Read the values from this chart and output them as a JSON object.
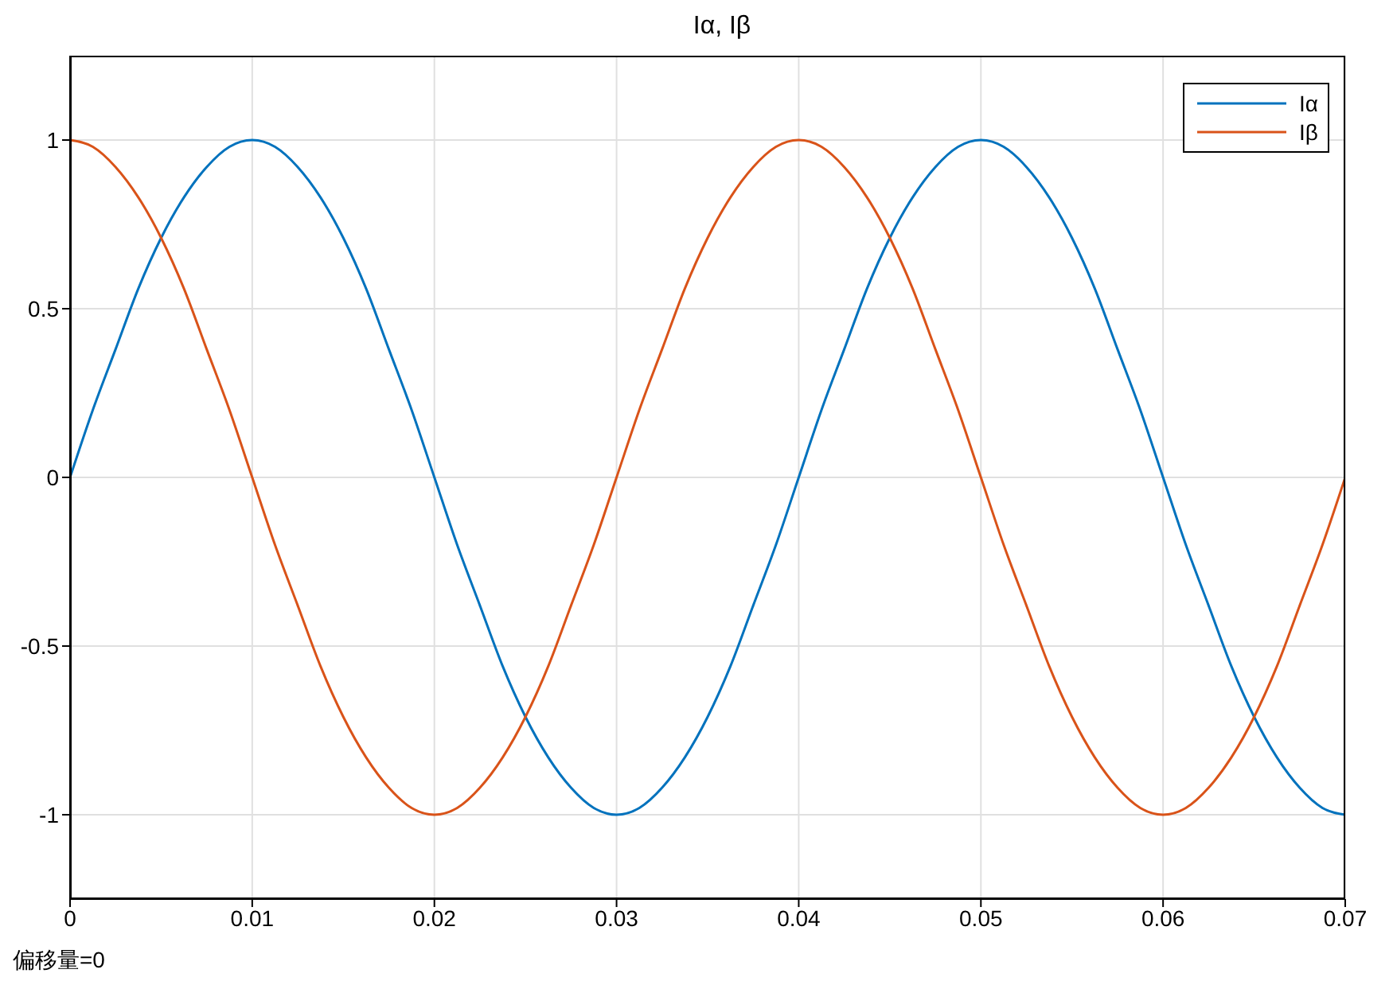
{
  "chart_data": {
    "type": "line",
    "title": "Iα, Iβ",
    "annotations": [
      "偏移量=0"
    ],
    "x": [
      0,
      0.00125,
      0.0025,
      0.00375,
      0.005,
      0.00625,
      0.0075,
      0.00875,
      0.01,
      0.01125,
      0.0125,
      0.01375,
      0.015,
      0.01625,
      0.0175,
      0.01875,
      0.02,
      0.02125,
      0.0225,
      0.02375,
      0.025,
      0.02625,
      0.0275,
      0.02875,
      0.03,
      0.03125,
      0.0325,
      0.03375,
      0.035,
      0.03625,
      0.0375,
      0.03875,
      0.04,
      0.04125,
      0.0425,
      0.04375,
      0.045,
      0.04625,
      0.0475,
      0.04875,
      0.05,
      0.05125,
      0.0525,
      0.05375,
      0.055,
      0.05625,
      0.0575,
      0.05875,
      0.06,
      0.06125,
      0.0625,
      0.06375,
      0.065,
      0.06625,
      0.0675,
      0.06875,
      0.07
    ],
    "series": [
      {
        "name": "Iα",
        "color": "#0072bd",
        "values": [
          0,
          0.2,
          0.38,
          0.56,
          0.71,
          0.83,
          0.92,
          0.98,
          1,
          0.98,
          0.92,
          0.83,
          0.71,
          0.56,
          0.38,
          0.2,
          0,
          -0.2,
          -0.38,
          -0.56,
          -0.71,
          -0.83,
          -0.92,
          -0.98,
          -1,
          -0.98,
          -0.92,
          -0.83,
          -0.71,
          -0.56,
          -0.38,
          -0.2,
          0,
          0.2,
          0.38,
          0.56,
          0.71,
          0.83,
          0.92,
          0.98,
          1,
          0.98,
          0.92,
          0.83,
          0.71,
          0.56,
          0.38,
          0.2,
          0,
          -0.2,
          -0.38,
          -0.56,
          -0.71,
          -0.83,
          -0.92,
          -0.98,
          -1
        ]
      },
      {
        "name": "Iβ",
        "color": "#d95319",
        "values": [
          1,
          0.98,
          0.92,
          0.83,
          0.71,
          0.56,
          0.38,
          0.2,
          0,
          -0.2,
          -0.38,
          -0.56,
          -0.71,
          -0.83,
          -0.92,
          -0.98,
          -1,
          -0.98,
          -0.92,
          -0.83,
          -0.71,
          -0.56,
          -0.38,
          -0.2,
          0,
          0.2,
          0.38,
          0.56,
          0.71,
          0.83,
          0.92,
          0.98,
          1,
          0.98,
          0.92,
          0.83,
          0.71,
          0.56,
          0.38,
          0.2,
          0,
          -0.2,
          -0.38,
          -0.56,
          -0.71,
          -0.83,
          -0.92,
          -0.98,
          -1,
          -0.98,
          -0.92,
          -0.83,
          -0.71,
          -0.56,
          -0.38,
          -0.2,
          0
        ]
      }
    ],
    "xlim": [
      0,
      0.07
    ],
    "xticks": [
      0,
      0.01,
      0.02,
      0.03,
      0.04,
      0.05,
      0.06,
      0.07
    ],
    "ylim": [
      -1.25,
      1.25
    ],
    "yticks": [
      -1,
      -0.5,
      0,
      0.5,
      1
    ],
    "grid": true,
    "legend": "top right",
    "marker": "none",
    "line_style": "solid"
  }
}
